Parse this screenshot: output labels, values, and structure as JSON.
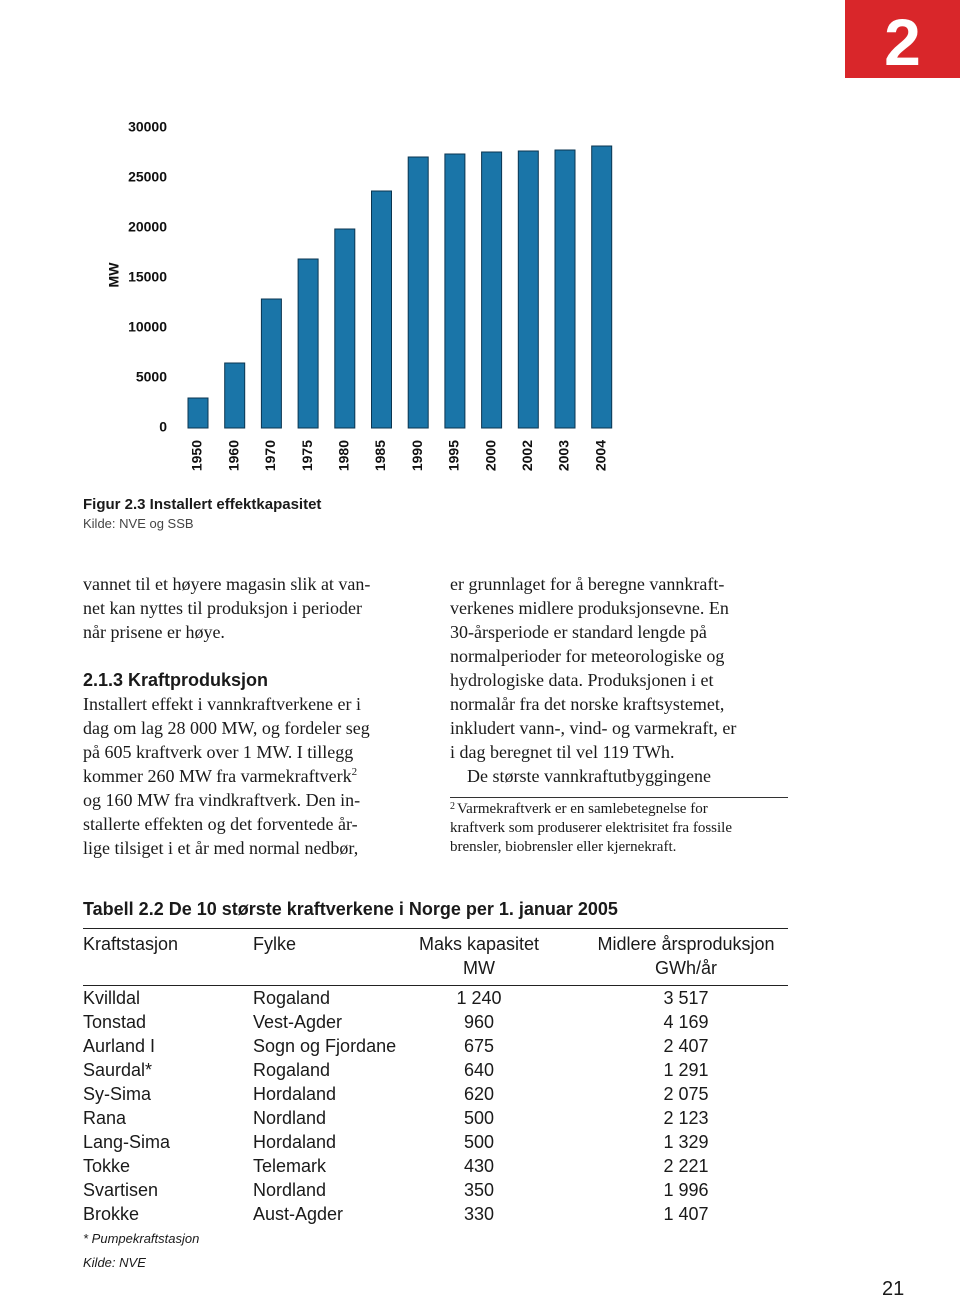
{
  "page_tab": "2",
  "chart_data": {
    "type": "bar",
    "ylabel": "MW",
    "categories": [
      "1950",
      "1960",
      "1970",
      "1975",
      "1980",
      "1985",
      "1990",
      "1995",
      "2000",
      "2002",
      "2003",
      "2004"
    ],
    "values": [
      3000,
      6500,
      12900,
      16900,
      19900,
      23700,
      27100,
      27400,
      27600,
      27700,
      27800,
      28200
    ],
    "color": "#1a75a8",
    "ylim": [
      0,
      30000
    ],
    "yticks": [
      0,
      5000,
      10000,
      15000,
      20000,
      25000,
      30000
    ],
    "grid": false,
    "caption": "Figur 2.3 Installert effektkapasitet",
    "source": "Kilde: NVE og SSB"
  },
  "left_column": {
    "intro": [
      "vannet til et høyere magasin slik at van-",
      "net kan nyttes til produksjon i perioder",
      "når prisene er høye."
    ],
    "heading": "2.1.3 Kraftproduksjon",
    "lines": [
      "Installert effekt i vannkraftverkene er i",
      "dag om lag 28 000 MW, og fordeler seg",
      "på 605 kraftverk over 1 MW. I tillegg",
      "kommer 260 MW fra varmekraftverk",
      "og 160 MW fra vindkraftverk. Den in-",
      "stallerte effekten og det forventede år-",
      "lige tilsiget i et år med normal nedbør,"
    ],
    "footnote_ref": "2"
  },
  "right_column": {
    "lines": [
      "er grunnlaget for å beregne vannkraft-",
      "verkenes midlere produksjonsevne. En",
      "30-årsperiode er standard lengde på",
      "normalperioder for meteorologiske og",
      "hydrologiske data. Produksjonen i et",
      "normalår fra det norske kraftsystemet,",
      "inkludert vann-, vind- og varmekraft, er",
      "i dag beregnet til vel 119 TWh.",
      "De største vannkraftutbyggingene"
    ],
    "footnote": {
      "number": "2",
      "lines": [
        "Varmekraftverk er en samlebetegnelse for",
        "kraftverk som produserer elektrisitet fra fossile",
        "brensler, biobrensler eller kjernekraft."
      ]
    }
  },
  "table": {
    "title": "Tabell 2.2 De 10 største kraftverkene i Norge per 1. januar 2005",
    "headers": [
      [
        "Kraftstasjon"
      ],
      [
        "Fylke"
      ],
      [
        "Maks kapasitet",
        "MW"
      ],
      [
        "Midlere årsproduksjon",
        "GWh/år"
      ]
    ],
    "rows": [
      [
        "Kvilldal",
        "Rogaland",
        "1 240",
        "3 517"
      ],
      [
        "Tonstad",
        "Vest-Agder",
        "960",
        "4 169"
      ],
      [
        "Aurland I",
        "Sogn og Fjordane",
        "675",
        "2 407"
      ],
      [
        "Saurdal*",
        "Rogaland",
        "640",
        "1 291"
      ],
      [
        "Sy-Sima",
        "Hordaland",
        "620",
        "2 075"
      ],
      [
        "Rana",
        "Nordland",
        "500",
        "2 123"
      ],
      [
        "Lang-Sima",
        "Hordaland",
        "500",
        "1 329"
      ],
      [
        "Tokke",
        "Telemark",
        "430",
        "2 221"
      ],
      [
        "Svartisen",
        "Nordland",
        "350",
        "1 996"
      ],
      [
        "Brokke",
        "Aust-Agder",
        "330",
        "1 407"
      ]
    ],
    "notes": [
      "* Pumpekraftstasjon",
      "Kilde: NVE"
    ]
  },
  "page_number": "21"
}
